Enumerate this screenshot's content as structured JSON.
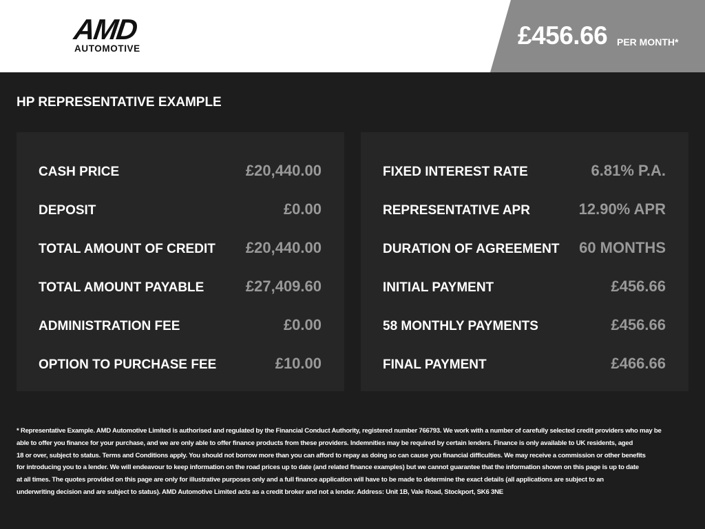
{
  "header": {
    "logo_text": "AMD",
    "logo_sub": "AUTOMOTIVE",
    "price": "£456.66",
    "price_suffix": "PER MONTH*"
  },
  "section_title": "HP REPRESENTATIVE EXAMPLE",
  "left": [
    {
      "label": "CASH PRICE",
      "value": "£20,440.00"
    },
    {
      "label": "DEPOSIT",
      "value": "£0.00"
    },
    {
      "label": "TOTAL AMOUNT OF CREDIT",
      "value": "£20,440.00"
    },
    {
      "label": "TOTAL AMOUNT PAYABLE",
      "value": "£27,409.60"
    },
    {
      "label": "ADMINISTRATION FEE",
      "value": "£0.00"
    },
    {
      "label": "OPTION TO PURCHASE FEE",
      "value": "£10.00"
    }
  ],
  "right": [
    {
      "label": "FIXED INTEREST RATE",
      "value": "6.81% P.A."
    },
    {
      "label": "REPRESENTATIVE APR",
      "value": "12.90% APR"
    },
    {
      "label": "DURATION OF AGREEMENT",
      "value": "60 MONTHS"
    },
    {
      "label": "INITIAL PAYMENT",
      "value": "£456.66"
    },
    {
      "label": "58 MONTHLY PAYMENTS",
      "value": "£456.66"
    },
    {
      "label": "FINAL PAYMENT",
      "value": "£466.66"
    }
  ],
  "disclaimer": [
    "* Representative Example. AMD Automotive Limited is authorised and regulated by the Financial Conduct Authority, registered number 766793. We work with a number of carefully selected credit providers who may be",
    "able to offer you finance for your purchase, and we are only able to offer finance products from these providers. Indemnities may be required by certain lenders. Finance is only available to UK residents, aged",
    "18 or over, subject to status. Terms and Conditions apply. You should not borrow more than you can afford to repay as doing so can cause you financial difficulties. We may receive a commission or other benefits",
    "for introducing you to a lender. We will endeavour to keep information on the road prices up to date (and related finance examples) but we cannot guarantee that the information shown on this page is up to date",
    "at all times. The quotes provided on this page are only for illustrative purposes only and a full finance application will have to be made to determine the exact details (all applications are subject to an",
    "underwriting decision and are subject to status). AMD Automotive Limited acts as a credit broker and not a lender. Address: Unit 1B, Vale Road, Stockport, SK6 3NE"
  ]
}
